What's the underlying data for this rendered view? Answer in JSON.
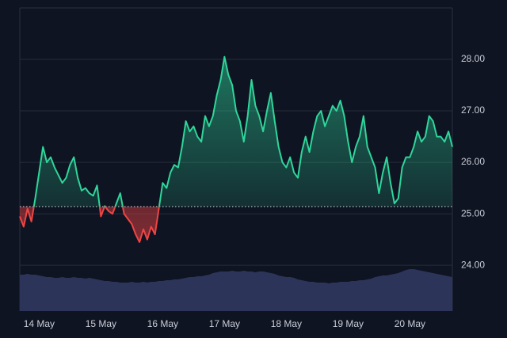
{
  "chart_data": {
    "type": "baseline",
    "categories": [
      null,
      null,
      null,
      null,
      null,
      "14 May",
      null,
      null,
      null,
      null,
      null,
      null,
      null,
      null,
      null,
      null,
      null,
      null,
      null,
      null,
      null,
      "15 May",
      null,
      null,
      null,
      null,
      null,
      null,
      null,
      null,
      null,
      null,
      null,
      null,
      null,
      null,
      null,
      "16 May",
      null,
      null,
      null,
      null,
      null,
      null,
      null,
      null,
      null,
      null,
      null,
      null,
      null,
      null,
      null,
      "17 May",
      null,
      null,
      null,
      null,
      null,
      null,
      null,
      null,
      null,
      null,
      null,
      null,
      null,
      null,
      null,
      "18 May",
      null,
      null,
      null,
      null,
      null,
      null,
      null,
      null,
      null,
      null,
      null,
      null,
      null,
      null,
      null,
      "19 May",
      null,
      null,
      null,
      null,
      null,
      null,
      null,
      null,
      null,
      null,
      null,
      null,
      null,
      null,
      null,
      "20 May",
      null,
      null,
      null,
      null,
      null,
      null,
      null,
      null,
      null,
      null,
      null
    ],
    "values": [
      24.95,
      24.75,
      25.1,
      24.85,
      25.3,
      25.8,
      26.3,
      26.0,
      26.1,
      25.9,
      25.75,
      25.6,
      25.7,
      25.95,
      26.1,
      25.7,
      25.45,
      25.5,
      25.4,
      25.35,
      25.55,
      24.95,
      25.15,
      25.05,
      25.0,
      25.2,
      25.4,
      25.0,
      24.9,
      24.8,
      24.6,
      24.45,
      24.7,
      24.5,
      24.75,
      24.6,
      25.1,
      25.6,
      25.5,
      25.8,
      25.95,
      25.9,
      26.3,
      26.8,
      26.6,
      26.7,
      26.5,
      26.4,
      26.9,
      26.7,
      26.9,
      27.3,
      27.6,
      28.05,
      27.7,
      27.5,
      27.0,
      26.8,
      26.4,
      26.9,
      27.6,
      27.1,
      26.9,
      26.6,
      27.0,
      27.35,
      26.8,
      26.3,
      26.0,
      25.9,
      26.1,
      25.8,
      25.7,
      26.2,
      26.5,
      26.2,
      26.6,
      26.9,
      27.0,
      26.7,
      26.9,
      27.1,
      27.0,
      27.2,
      26.9,
      26.4,
      26.0,
      26.3,
      26.5,
      26.9,
      26.3,
      26.1,
      25.9,
      25.4,
      25.8,
      26.1,
      25.6,
      25.2,
      25.3,
      25.9,
      26.1,
      26.1,
      26.3,
      26.6,
      26.4,
      26.5,
      26.9,
      26.8,
      26.5,
      26.5,
      26.4,
      26.6,
      26.3
    ],
    "baseline": 25.14,
    "up_color": "#2fd69a",
    "down_color": "#ef4444",
    "ylim": [
      23.11,
      29.0
    ],
    "yticks": [
      {
        "value": 24,
        "label": "24.00"
      },
      {
        "value": 25,
        "label": "25.00"
      },
      {
        "value": 26,
        "label": "26.00"
      },
      {
        "value": 27,
        "label": "27.00"
      },
      {
        "value": 28,
        "label": "28.00"
      }
    ],
    "grid": true,
    "volume": {
      "color": "#2c3559",
      "vlim": [
        0,
        100
      ],
      "values": [
        46,
        46,
        47,
        46,
        46,
        45,
        44,
        43,
        43,
        42,
        42,
        43,
        42,
        42,
        43,
        42,
        42,
        41,
        42,
        41,
        40,
        39,
        38,
        38,
        37,
        37,
        36,
        36,
        36,
        37,
        36,
        36,
        37,
        36,
        37,
        37,
        38,
        38,
        39,
        39,
        40,
        40,
        41,
        42,
        43,
        43,
        44,
        44,
        45,
        46,
        48,
        49,
        50,
        50,
        50,
        51,
        50,
        50,
        51,
        50,
        50,
        49,
        50,
        50,
        49,
        48,
        47,
        45,
        44,
        43,
        43,
        42,
        40,
        39,
        38,
        37,
        37,
        36,
        36,
        36,
        35,
        36,
        36,
        37,
        37,
        37,
        38,
        38,
        39,
        39,
        40,
        41,
        43,
        44,
        45,
        45,
        46,
        47,
        48,
        50,
        52,
        53,
        53,
        52,
        51,
        50,
        49,
        48,
        47,
        46,
        45,
        44,
        43
      ]
    }
  }
}
